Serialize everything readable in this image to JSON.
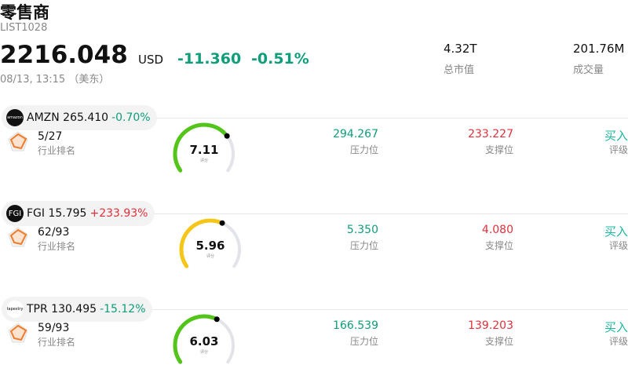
{
  "header": {
    "title": "零售商",
    "code": "LIST1028",
    "price": "2216.048",
    "currency": "USD",
    "change": "-11.360",
    "change_pct": "-0.51%",
    "datetime": "08/13, 13:15 （美东）",
    "stats": [
      {
        "value": "4.32T",
        "label": "总市值"
      },
      {
        "value": "201.76M",
        "label": "成交量"
      }
    ]
  },
  "items": [
    {
      "quote": "AMZN 265.410",
      "change": "-0.70%",
      "rank": "5/27",
      "rank_label": "行业排名",
      "score": "7.11",
      "score_label": "评分",
      "resistance": "294.267",
      "resistance_label": "压力位",
      "support": "233.227",
      "support_label": "支撑位",
      "rating": "买入",
      "rating_label": "评级"
    },
    {
      "quote": "FGI 15.795",
      "change": "+233.93%",
      "rank": "62/93",
      "rank_label": "行业排名",
      "score": "5.96",
      "score_label": "评分",
      "resistance": "5.350",
      "resistance_label": "压力位",
      "support": "4.080",
      "support_label": "支撑位",
      "rating": "买入",
      "rating_label": "评级"
    },
    {
      "quote": "TPR 130.495",
      "change": "-15.12%",
      "rank": "59/93",
      "rank_label": "行业排名",
      "score": "6.03",
      "score_label": "评分",
      "resistance": "166.539",
      "resistance_label": "压力位",
      "support": "139.203",
      "support_label": "支撑位",
      "rating": "买入",
      "rating_label": "评级"
    }
  ]
}
